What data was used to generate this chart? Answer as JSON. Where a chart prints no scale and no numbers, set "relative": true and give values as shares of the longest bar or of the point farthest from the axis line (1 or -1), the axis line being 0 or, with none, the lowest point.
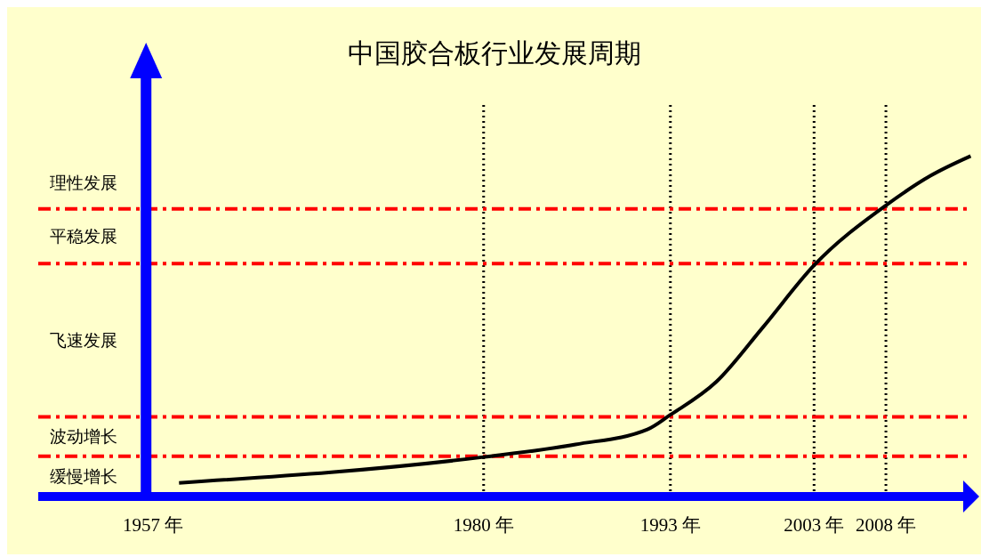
{
  "chart_data": {
    "type": "line",
    "title": "中国胶合板行业发展周期",
    "relative": true,
    "x": [
      1958.8,
      1980,
      1986.4,
      1991.4,
      1993,
      1996.2,
      1999.4,
      2003,
      2008,
      2011.1,
      2013.9
    ],
    "series": [
      {
        "color": "#000000",
        "values": [
          0.04,
          0.116,
          0.153,
          0.197,
          0.24,
          0.337,
          0.495,
          0.679,
          0.855,
          0.942,
          1
        ]
      }
    ],
    "xlim": [
      1949,
      2014
    ],
    "xticks": [
      {
        "value": 1957,
        "label": "1957 年"
      },
      {
        "value": 1980,
        "label": "1980 年"
      },
      {
        "value": 1993,
        "label": "1993 年"
      },
      {
        "value": 2003,
        "label": "2003 年"
      },
      {
        "value": 2008,
        "label": "2008 年"
      }
    ],
    "ref_lines": [
      {
        "axis": "x",
        "value": 1980,
        "color": "#000000",
        "line_style": "dotted"
      },
      {
        "axis": "x",
        "value": 1993,
        "color": "#000000",
        "line_style": "dotted"
      },
      {
        "axis": "x",
        "value": 2003,
        "color": "#000000",
        "line_style": "dotted"
      },
      {
        "axis": "x",
        "value": 2008,
        "color": "#000000",
        "line_style": "dotted"
      },
      {
        "axis": "y",
        "value": 0.118,
        "color": "#ff0000",
        "line_style": "dashdot"
      },
      {
        "axis": "y",
        "value": 0.234,
        "color": "#ff0000",
        "line_style": "dashdot"
      },
      {
        "axis": "y",
        "value": 0.684,
        "color": "#ff0000",
        "line_style": "dashdot"
      },
      {
        "axis": "y",
        "value": 0.845,
        "color": "#ff0000",
        "line_style": "dashdot"
      }
    ],
    "annotations": [
      "缓慢增长",
      "波动增长",
      "飞速发展",
      "平稳发展",
      "理性发展"
    ],
    "marker": "none",
    "line_style": "solid"
  }
}
